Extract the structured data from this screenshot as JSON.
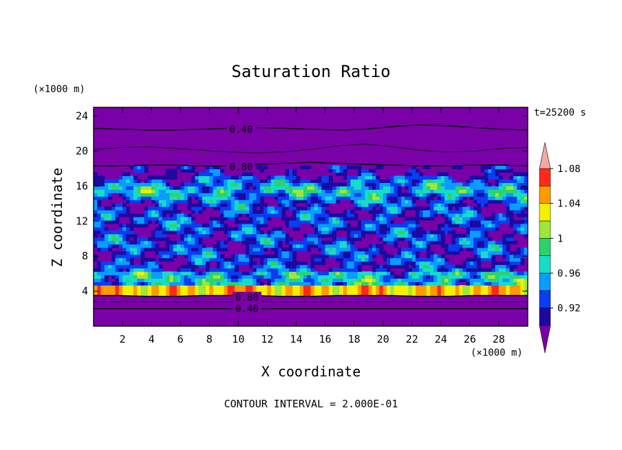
{
  "chart_data": {
    "type": "heatmap",
    "title": "Saturation Ratio",
    "xlabel": "X coordinate",
    "ylabel": "Z coordinate",
    "x_unit": "(×1000 m)",
    "y_unit": "(×1000 m)",
    "time_label": "t=25200 s",
    "footer": "CONTOUR INTERVAL = 2.000E-01",
    "xlim": [
      0,
      30
    ],
    "ylim": [
      0,
      25
    ],
    "x_ticks": [
      2,
      4,
      6,
      8,
      10,
      12,
      14,
      16,
      18,
      20,
      22,
      24,
      26,
      28
    ],
    "y_ticks": [
      4,
      8,
      12,
      16,
      20,
      24
    ],
    "colorbar": {
      "levels": [
        0.9,
        0.92,
        0.94,
        0.96,
        0.98,
        1.0,
        1.02,
        1.04,
        1.06,
        1.08,
        1.1
      ],
      "tick_labels": [
        "0.92",
        "0.96",
        "1",
        "1.04",
        "1.08"
      ],
      "colors": [
        "#7a00a8",
        "#1c0aa0",
        "#0a3cf0",
        "#0a9cff",
        "#18dcc8",
        "#2cd26e",
        "#9ee63a",
        "#f4f000",
        "#ff9a00",
        "#ff2a1a",
        "#f4a8a8"
      ],
      "under_color": "#7a00a8",
      "over_color": "#f4a8a8"
    },
    "contour_labels": [
      {
        "x": 10.2,
        "z": 22.5,
        "text": "0.40"
      },
      {
        "x": 10.2,
        "z": 18.2,
        "text": "0.80"
      },
      {
        "x": 10.6,
        "z": 3.3,
        "text": "0.80"
      },
      {
        "x": 10.6,
        "z": 2.0,
        "text": "0.40"
      }
    ],
    "contours": [
      {
        "level": 0.4,
        "z": [
          22.6,
          22.5,
          22.4,
          22.4,
          22.5,
          22.6,
          22.7,
          22.6,
          22.5,
          22.4,
          22.5,
          22.8,
          23.0,
          22.9,
          22.7,
          22.5,
          22.4
        ]
      },
      {
        "level": 0.6,
        "z": [
          20.2,
          20.4,
          20.5,
          20.3,
          20.1,
          19.9,
          19.8,
          19.9,
          20.2,
          20.6,
          20.8,
          20.5,
          20.1,
          19.9,
          20.0,
          20.3,
          20.4
        ]
      },
      {
        "level": 0.8,
        "z": [
          18.3,
          18.3,
          18.4,
          18.4,
          18.3,
          18.3,
          18.5,
          18.6,
          18.7,
          18.6,
          18.5,
          18.4,
          18.3,
          18.3,
          18.4,
          18.4,
          18.3
        ]
      },
      {
        "level": 0.8,
        "z": [
          3.5,
          3.5,
          3.4,
          3.4,
          3.5,
          3.5,
          3.5,
          3.4,
          3.4,
          3.5,
          3.5,
          3.5,
          3.4,
          3.4,
          3.5,
          3.5,
          3.5
        ]
      },
      {
        "level": 0.6,
        "z": [
          2.8,
          2.8,
          2.8,
          2.8,
          2.8,
          2.8,
          2.8,
          2.8,
          2.8,
          2.8,
          2.8,
          2.8,
          2.8,
          2.8,
          2.8,
          2.8,
          2.8
        ]
      },
      {
        "level": 0.4,
        "z": [
          2.0,
          2.0,
          2.0,
          2.0,
          2.0,
          2.0,
          2.0,
          2.0,
          2.0,
          2.0,
          2.0,
          2.0,
          2.0,
          2.0,
          2.0,
          2.0,
          2.0
        ]
      }
    ]
  }
}
